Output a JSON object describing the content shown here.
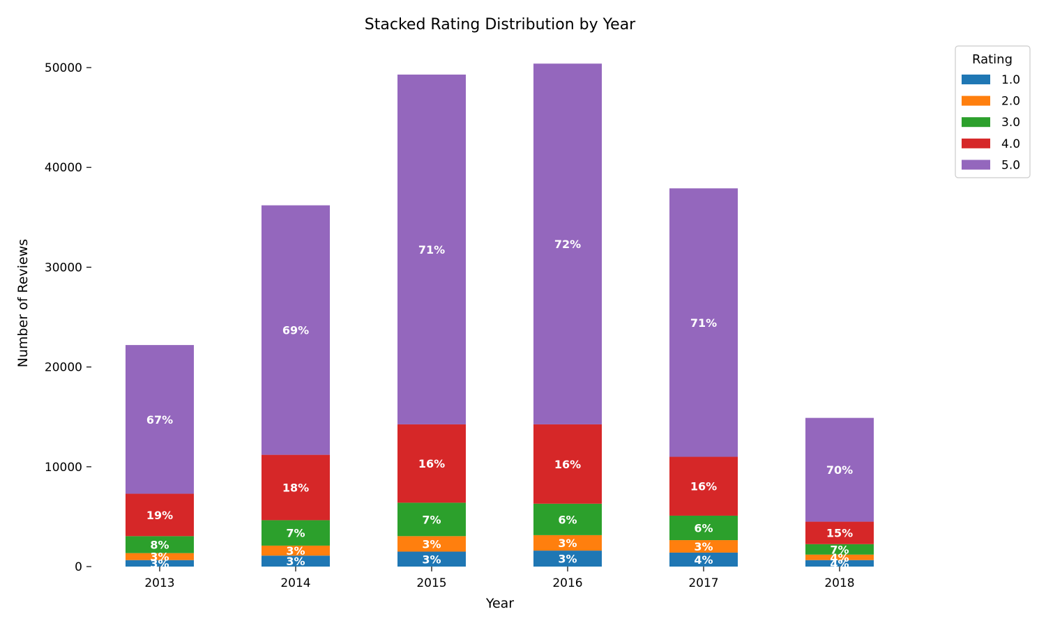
{
  "chart_data": {
    "type": "bar",
    "stacked": true,
    "title": "Stacked Rating Distribution by Year",
    "xlabel": "Year",
    "ylabel": "Number of Reviews",
    "categories": [
      "2013",
      "2014",
      "2015",
      "2016",
      "2017",
      "2018"
    ],
    "ylim": [
      0,
      52000
    ],
    "yticks": [
      0,
      10000,
      20000,
      30000,
      40000,
      50000
    ],
    "grid": false,
    "legend": {
      "title": "Rating",
      "position": "top-right"
    },
    "series": [
      {
        "name": "1.0",
        "color": "#1f77b4",
        "values": [
          650,
          1100,
          1500,
          1600,
          1400,
          650
        ],
        "labels": [
          "3%",
          "3%",
          "3%",
          "3%",
          "4%",
          "4%"
        ]
      },
      {
        "name": "2.0",
        "color": "#ff7f0e",
        "values": [
          700,
          1000,
          1550,
          1550,
          1250,
          550
        ],
        "labels": [
          "3%",
          "3%",
          "3%",
          "3%",
          "3%",
          "4%"
        ]
      },
      {
        "name": "3.0",
        "color": "#2ca02c",
        "values": [
          1700,
          2550,
          3350,
          3150,
          2450,
          1050
        ],
        "labels": [
          "8%",
          "7%",
          "7%",
          "6%",
          "6%",
          "7%"
        ]
      },
      {
        "name": "4.0",
        "color": "#d62728",
        "values": [
          4250,
          6550,
          7850,
          7950,
          5900,
          2250
        ],
        "labels": [
          "19%",
          "18%",
          "16%",
          "16%",
          "16%",
          "15%"
        ]
      },
      {
        "name": "5.0",
        "color": "#9467bd",
        "values": [
          14900,
          25000,
          35050,
          36150,
          26900,
          10400
        ],
        "labels": [
          "67%",
          "69%",
          "71%",
          "72%",
          "71%",
          "70%"
        ]
      }
    ]
  }
}
